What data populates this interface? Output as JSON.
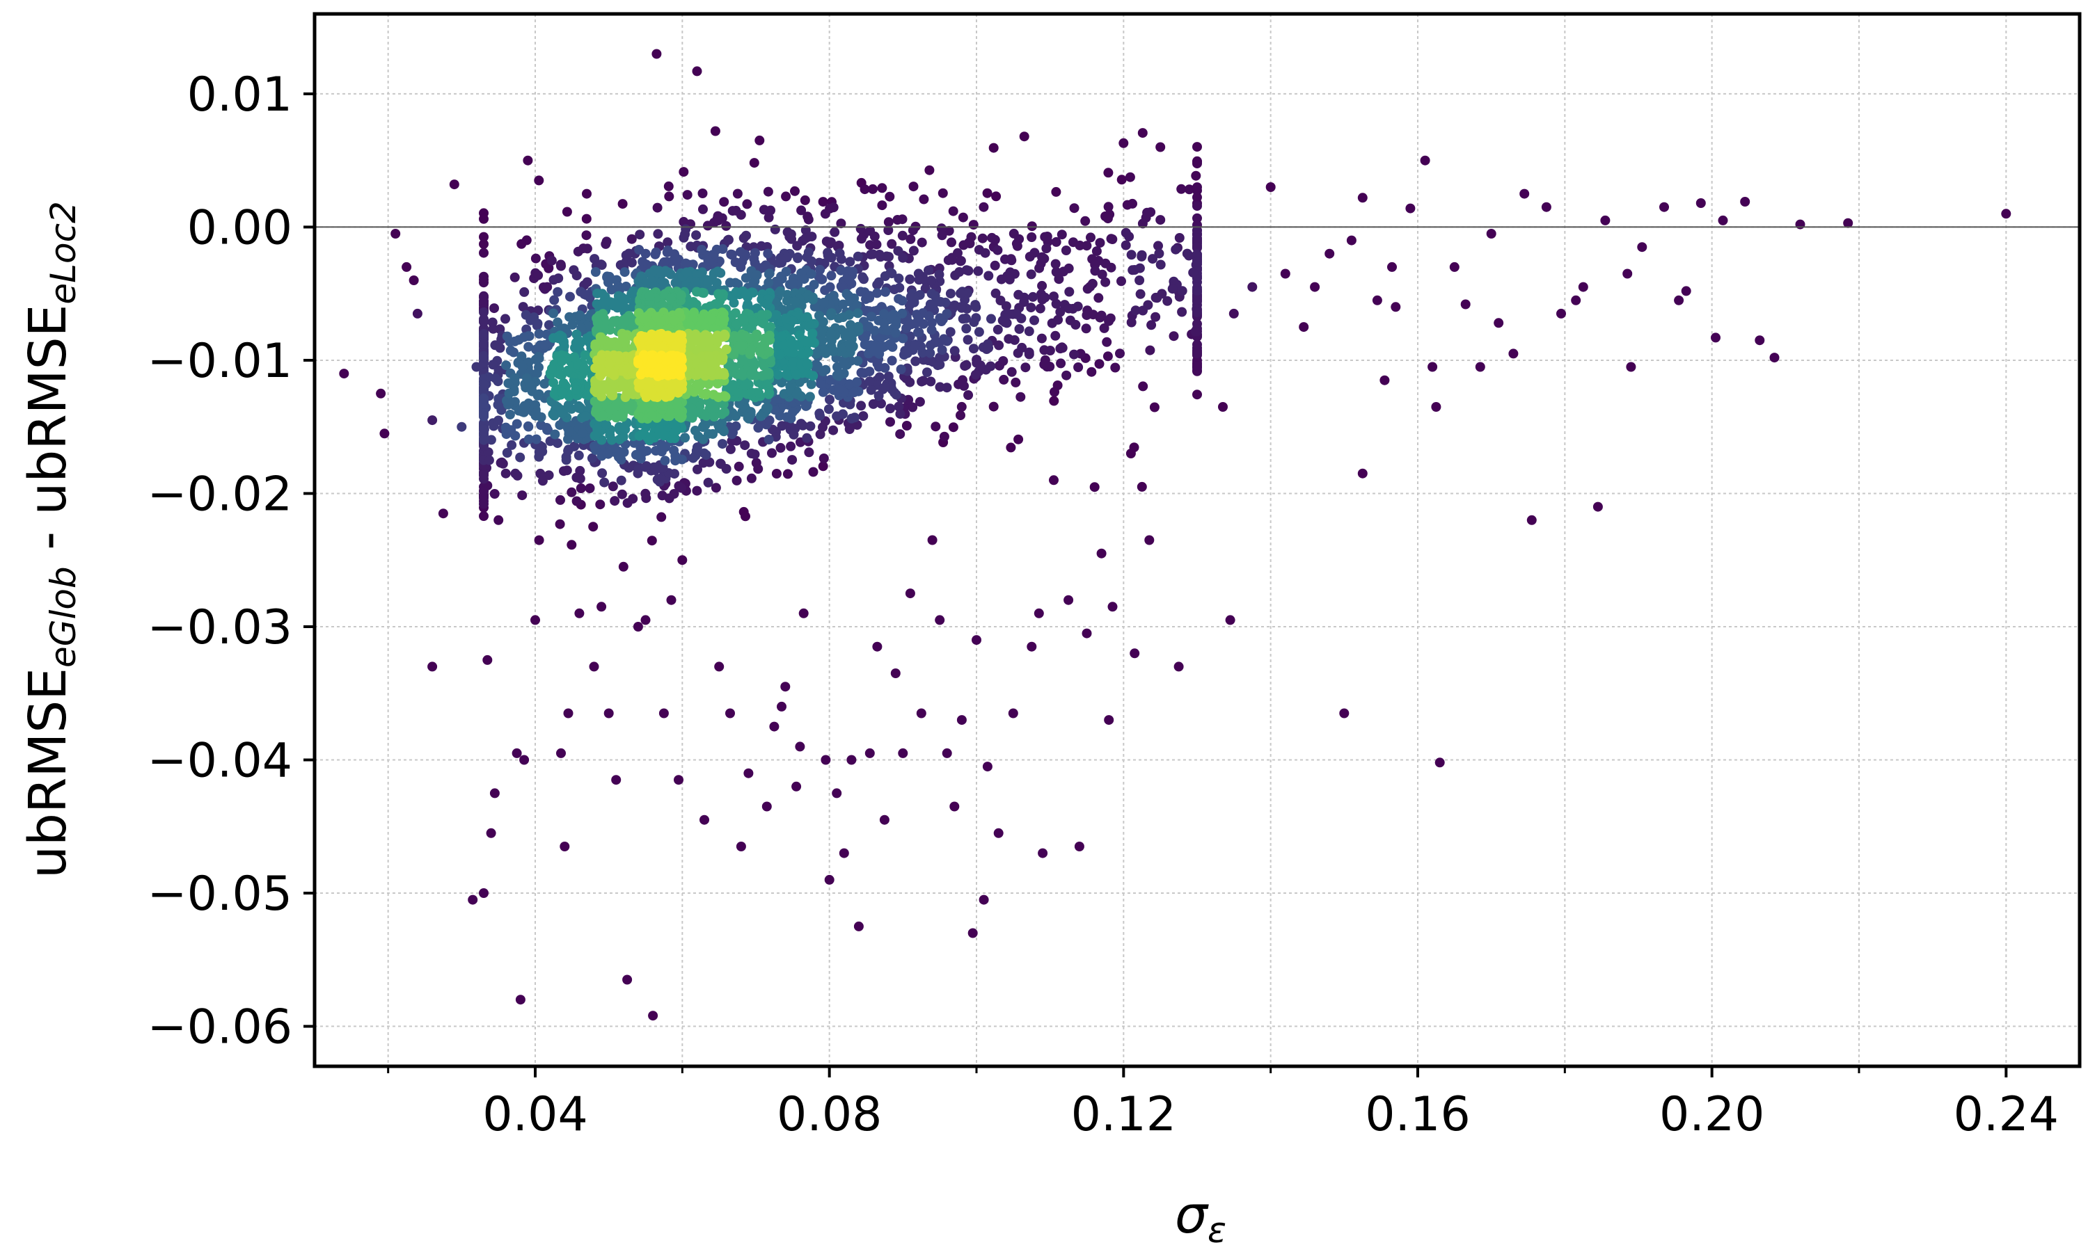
{
  "chart_data": {
    "type": "scatter",
    "title": "",
    "xlabel": "σε",
    "ylabel": "ubRMSEeGlob - ubRMSEeLoc2",
    "xlabel_parts": {
      "main": "σ",
      "sub": "ε"
    },
    "ylabel_parts": {
      "a": "ubRMSE",
      "a_sub": "eGlob",
      "sep": " - ubRMSE",
      "b_sub": "eLoc2"
    },
    "xlim": [
      0.01,
      0.25
    ],
    "ylim": [
      -0.063,
      0.016
    ],
    "x_major_ticks": [
      0.04,
      0.08,
      0.12,
      0.16,
      0.2,
      0.24
    ],
    "x_tick_labels": [
      "0.04",
      "0.08",
      "0.12",
      "0.16",
      "0.20",
      "0.24"
    ],
    "x_minor_ticks": [
      0.02,
      0.06,
      0.1,
      0.14,
      0.18,
      0.22
    ],
    "y_major_ticks": [
      0.01,
      0.0,
      -0.01,
      -0.02,
      -0.03,
      -0.04,
      -0.05,
      -0.06
    ],
    "y_tick_labels": [
      "0.01",
      "0.00",
      "−0.01",
      "−0.02",
      "−0.03",
      "−0.04",
      "−0.05",
      "−0.06"
    ],
    "grid": true,
    "reference_line_y": 0.0,
    "colormap": [
      "#440154",
      "#3b528b",
      "#21918c",
      "#5ec962",
      "#fde725"
    ],
    "series": [
      {
        "points": [
          [
            0.014,
            -0.011
          ],
          [
            0.019,
            -0.0125
          ],
          [
            0.0195,
            -0.0155
          ],
          [
            0.021,
            -0.0005
          ],
          [
            0.0225,
            -0.003
          ],
          [
            0.0235,
            -0.004
          ],
          [
            0.024,
            -0.0065
          ],
          [
            0.026,
            -0.0145
          ],
          [
            0.026,
            -0.033
          ],
          [
            0.0275,
            -0.0215
          ],
          [
            0.029,
            0.0032
          ],
          [
            0.03,
            -0.015
          ],
          [
            0.0315,
            -0.0505
          ],
          [
            0.032,
            -0.0105
          ],
          [
            0.033,
            -0.05
          ],
          [
            0.0335,
            -0.0325
          ],
          [
            0.034,
            -0.0455
          ],
          [
            0.0345,
            -0.0425
          ],
          [
            0.035,
            -0.022
          ],
          [
            0.036,
            -0.0185
          ],
          [
            0.0375,
            -0.0395
          ],
          [
            0.038,
            -0.058
          ],
          [
            0.0385,
            -0.04
          ],
          [
            0.039,
            0.005
          ],
          [
            0.04,
            -0.0295
          ],
          [
            0.0405,
            0.0035
          ],
          [
            0.0435,
            -0.0395
          ],
          [
            0.044,
            -0.0465
          ],
          [
            0.0445,
            -0.0365
          ],
          [
            0.046,
            -0.029
          ],
          [
            0.047,
            0.0025
          ],
          [
            0.048,
            -0.033
          ],
          [
            0.049,
            -0.0285
          ],
          [
            0.05,
            -0.0365
          ],
          [
            0.051,
            -0.0415
          ],
          [
            0.052,
            -0.0255
          ],
          [
            0.0525,
            -0.0565
          ],
          [
            0.054,
            -0.03
          ],
          [
            0.055,
            -0.0295
          ],
          [
            0.056,
            -0.0592
          ],
          [
            0.0565,
            0.013
          ],
          [
            0.0575,
            -0.0365
          ],
          [
            0.0585,
            -0.028
          ],
          [
            0.0595,
            -0.0415
          ],
          [
            0.06,
            -0.025
          ],
          [
            0.062,
            0.0117
          ],
          [
            0.063,
            -0.0445
          ],
          [
            0.0645,
            0.0072
          ],
          [
            0.065,
            -0.033
          ],
          [
            0.0665,
            -0.0365
          ],
          [
            0.068,
            -0.0465
          ],
          [
            0.069,
            -0.041
          ],
          [
            0.0705,
            0.0065
          ],
          [
            0.0715,
            -0.0435
          ],
          [
            0.0725,
            -0.0375
          ],
          [
            0.0735,
            -0.036
          ],
          [
            0.074,
            -0.0345
          ],
          [
            0.0755,
            -0.042
          ],
          [
            0.076,
            -0.039
          ],
          [
            0.0765,
            -0.029
          ],
          [
            0.0795,
            -0.04
          ],
          [
            0.08,
            -0.049
          ],
          [
            0.081,
            -0.0425
          ],
          [
            0.082,
            -0.047
          ],
          [
            0.083,
            -0.04
          ],
          [
            0.084,
            -0.0525
          ],
          [
            0.0855,
            -0.0395
          ],
          [
            0.0865,
            -0.0315
          ],
          [
            0.0875,
            -0.0445
          ],
          [
            0.089,
            -0.0335
          ],
          [
            0.09,
            -0.0395
          ],
          [
            0.091,
            -0.0275
          ],
          [
            0.0925,
            -0.0365
          ],
          [
            0.094,
            -0.0235
          ],
          [
            0.095,
            -0.0295
          ],
          [
            0.096,
            -0.0395
          ],
          [
            0.097,
            -0.0435
          ],
          [
            0.098,
            -0.037
          ],
          [
            0.0995,
            -0.053
          ],
          [
            0.1,
            -0.031
          ],
          [
            0.101,
            -0.0505
          ],
          [
            0.1015,
            -0.0405
          ],
          [
            0.103,
            -0.0455
          ],
          [
            0.105,
            -0.0365
          ],
          [
            0.1065,
            0.0068
          ],
          [
            0.1075,
            -0.0315
          ],
          [
            0.1085,
            -0.029
          ],
          [
            0.109,
            -0.047
          ],
          [
            0.1105,
            -0.019
          ],
          [
            0.1125,
            -0.028
          ],
          [
            0.114,
            -0.0465
          ],
          [
            0.115,
            -0.0305
          ],
          [
            0.117,
            -0.0245
          ],
          [
            0.118,
            -0.037
          ],
          [
            0.1185,
            -0.0285
          ],
          [
            0.12,
            0.0063
          ],
          [
            0.121,
            -0.017
          ],
          [
            0.1215,
            -0.032
          ],
          [
            0.1225,
            -0.0195
          ],
          [
            0.1235,
            -0.0235
          ],
          [
            0.125,
            0.006
          ],
          [
            0.1275,
            -0.033
          ],
          [
            0.13,
            -0.0105
          ],
          [
            0.1335,
            -0.0135
          ],
          [
            0.1345,
            -0.0295
          ],
          [
            0.135,
            -0.0065
          ],
          [
            0.1375,
            -0.0045
          ],
          [
            0.14,
            0.003
          ],
          [
            0.142,
            -0.0035
          ],
          [
            0.1445,
            -0.0075
          ],
          [
            0.146,
            -0.0045
          ],
          [
            0.148,
            -0.002
          ],
          [
            0.15,
            -0.0365
          ],
          [
            0.151,
            -0.001
          ],
          [
            0.1525,
            0.0022
          ],
          [
            0.1525,
            -0.0185
          ],
          [
            0.1545,
            -0.0055
          ],
          [
            0.1555,
            -0.0115
          ],
          [
            0.1565,
            -0.003
          ],
          [
            0.157,
            -0.006
          ],
          [
            0.159,
            0.0014
          ],
          [
            0.161,
            0.005
          ],
          [
            0.162,
            -0.0105
          ],
          [
            0.1625,
            -0.0135
          ],
          [
            0.163,
            -0.0402
          ],
          [
            0.165,
            -0.003
          ],
          [
            0.1665,
            -0.0058
          ],
          [
            0.1685,
            -0.0105
          ],
          [
            0.17,
            -0.0005
          ],
          [
            0.171,
            -0.0072
          ],
          [
            0.173,
            -0.0095
          ],
          [
            0.1745,
            0.0025
          ],
          [
            0.1755,
            -0.022
          ],
          [
            0.1775,
            0.0015
          ],
          [
            0.1795,
            -0.0065
          ],
          [
            0.1815,
            -0.0055
          ],
          [
            0.1825,
            -0.0045
          ],
          [
            0.1845,
            -0.021
          ],
          [
            0.1855,
            0.0005
          ],
          [
            0.1885,
            -0.0035
          ],
          [
            0.189,
            -0.0105
          ],
          [
            0.1905,
            -0.0015
          ],
          [
            0.1935,
            0.0015
          ],
          [
            0.1955,
            -0.0055
          ],
          [
            0.1965,
            -0.0048
          ],
          [
            0.1985,
            0.0018
          ],
          [
            0.2005,
            -0.0083
          ],
          [
            0.2015,
            0.0005
          ],
          [
            0.2045,
            0.0019
          ],
          [
            0.2065,
            -0.0085
          ],
          [
            0.2085,
            -0.0098
          ],
          [
            0.212,
            0.0002
          ],
          [
            0.2185,
            0.0003
          ],
          [
            0.24,
            0.001
          ]
        ]
      }
    ]
  }
}
